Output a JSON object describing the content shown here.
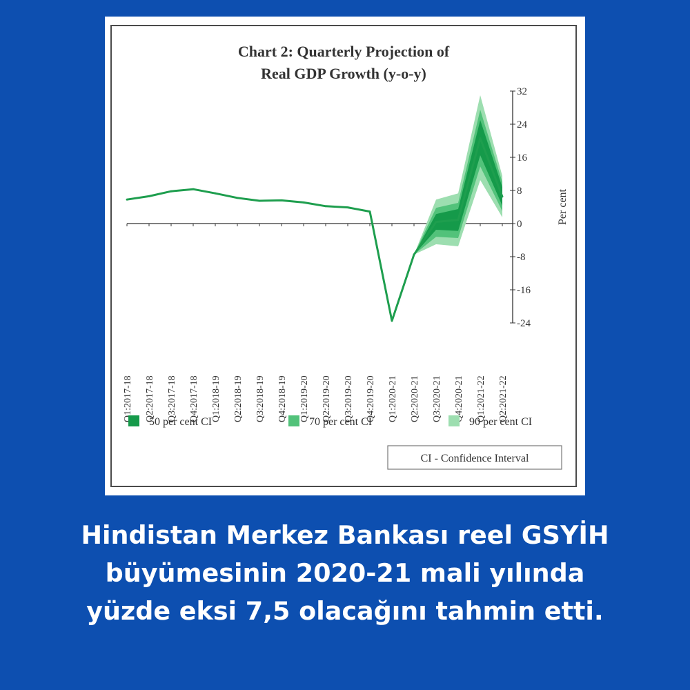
{
  "chart_data": {
    "type": "line",
    "title_lines": [
      "Chart 2: Quarterly Projection of",
      "Real GDP Growth (y-o-y)"
    ],
    "ylabel": "Per cent",
    "ylim": [
      -24,
      32
    ],
    "yticks": [
      32,
      24,
      16,
      8,
      0,
      -8,
      -16,
      -24
    ],
    "categories": [
      "Q1:2017-18",
      "Q2:2017-18",
      "Q3:2017-18",
      "Q4:2017-18",
      "Q1:2018-19",
      "Q2:2018-19",
      "Q3:2018-19",
      "Q4:2018-19",
      "Q1:2019-20",
      "Q2:2019-20",
      "Q3:2019-20",
      "Q4:2019-20",
      "Q1:2020-21",
      "Q2:2020-21",
      "Q3:2020-21",
      "Q4:2020-21",
      "Q1:2021-22",
      "Q2:2021-22"
    ],
    "series": [
      {
        "values": [
          5.8,
          6.6,
          7.8,
          8.3,
          7.3,
          6.2,
          5.5,
          5.6,
          5.1,
          4.2,
          3.9,
          2.9,
          -23.5,
          -7.5,
          0.4,
          0.9,
          20.6,
          6.5
        ]
      }
    ],
    "confidence_bands": [
      {
        "name": "90 per cent CI",
        "color": "#9ddeb0",
        "start_index": 13,
        "lower": [
          -7.5,
          -5.0,
          -5.5,
          10.5,
          1.5
        ],
        "upper": [
          -7.5,
          5.8,
          7.3,
          31.0,
          11.5
        ]
      },
      {
        "name": "70 per cent CI",
        "color": "#52c27a",
        "start_index": 13,
        "lower": [
          -7.5,
          -3.2,
          -3.5,
          13.8,
          3.0
        ],
        "upper": [
          -7.5,
          3.8,
          5.0,
          27.5,
          10.0
        ]
      },
      {
        "name": "50 per cent CI",
        "color": "#159a4a",
        "start_index": 13,
        "lower": [
          -7.5,
          -1.5,
          -1.8,
          16.5,
          4.3
        ],
        "upper": [
          -7.5,
          2.3,
          3.5,
          25.0,
          8.8
        ]
      }
    ],
    "line_color": "#1e9e4e",
    "legend": [
      {
        "label": "50 per cent CI",
        "color": "#159a4a"
      },
      {
        "label": "70 per cent CI",
        "color": "#52c27a"
      },
      {
        "label": "90 per cent CI",
        "color": "#9ddeb0"
      }
    ],
    "legend_position": "bottom",
    "note": "CI - Confidence Interval"
  },
  "caption": {
    "lines": [
      "Hindistan Merkez Bankası reel GSYİH",
      "büyümesinin 2020-21 mali yılında",
      "yüzde eksi 7,5 olacağını tahmin etti."
    ]
  }
}
